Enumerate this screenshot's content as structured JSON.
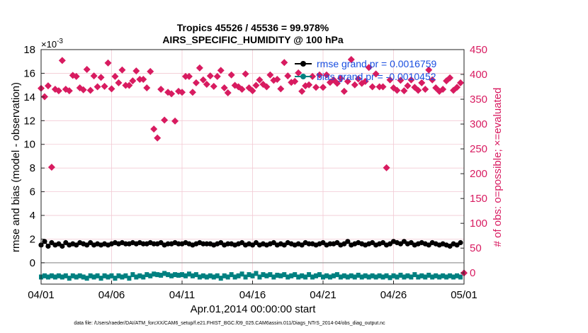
{
  "chart_data": {
    "type": "scatter",
    "title_line1": "Tropics 45526 / 45536 = 99.978%",
    "title_line2": "AIRS_SPECIFIC_HUMIDITY @ 100 hPa",
    "xlabel": "Apr.01,2014 00:00:00 start",
    "ylabel_left": "rmse and bias (model - observation)",
    "ylabel_right": "# of obs: o=possible; ×=evaluated",
    "y_exponent_label": "×10",
    "y_exponent_value": "-3",
    "footer": "data file: /Users/raeder/DAI/ATM_forcXX/CAM6_setup/f.e21.FHIST_BGC.f09_025.CAM6assim.011/Diags_NTrS_2014-04/obs_diag_output.nc",
    "x_ticks": [
      {
        "day": 0,
        "label": "04/01"
      },
      {
        "day": 5,
        "label": "04/06"
      },
      {
        "day": 10,
        "label": "04/11"
      },
      {
        "day": 15,
        "label": "04/16"
      },
      {
        "day": 20,
        "label": "04/21"
      },
      {
        "day": 25,
        "label": "04/26"
      },
      {
        "day": 30,
        "label": "05/01"
      }
    ],
    "xlim": [
      0,
      30
    ],
    "ylim_left": [
      -1.8,
      18
    ],
    "ylim_right": [
      -22.5,
      450
    ],
    "y_ticks_left": [
      "0",
      "2",
      "4",
      "6",
      "8",
      "10",
      "12",
      "14",
      "16",
      "18"
    ],
    "y_ticks_right": [
      "0",
      "50",
      "100",
      "150",
      "200",
      "250",
      "300",
      "350",
      "400",
      "450"
    ],
    "grid": true,
    "legend": {
      "position": "top-right",
      "entries": [
        {
          "label": "rmse grand pr = 0.0016759",
          "color": "#000000"
        },
        {
          "label": "bias grand pr = -0.0010452",
          "color": "#008080"
        }
      ]
    },
    "colors": {
      "rmse": "#000000",
      "bias": "#008080",
      "obs": "#d81b60",
      "legend_text": "#1a4fe0",
      "grid": "#f2c9d3",
      "zero_line": "#999999"
    },
    "series": [
      {
        "name": "rmse",
        "axis": "left",
        "units": "x1e-3",
        "x": [
          0.0,
          0.25,
          0.5,
          0.75,
          1.0,
          1.25,
          1.5,
          1.75,
          2.0,
          2.25,
          2.5,
          2.75,
          3.0,
          3.25,
          3.5,
          3.75,
          4.0,
          4.25,
          4.5,
          4.75,
          5.0,
          5.25,
          5.5,
          5.75,
          6.0,
          6.25,
          6.5,
          6.75,
          7.0,
          7.25,
          7.5,
          7.75,
          8.0,
          8.25,
          8.5,
          8.75,
          9.0,
          9.25,
          9.5,
          9.75,
          10.0,
          10.25,
          10.5,
          10.75,
          11.0,
          11.25,
          11.5,
          11.75,
          12.0,
          12.25,
          12.5,
          12.75,
          13.0,
          13.25,
          13.5,
          13.75,
          14.0,
          14.25,
          14.5,
          14.75,
          15.0,
          15.25,
          15.5,
          15.75,
          16.0,
          16.25,
          16.5,
          16.75,
          17.0,
          17.25,
          17.5,
          17.75,
          18.0,
          18.25,
          18.5,
          18.75,
          19.0,
          19.25,
          19.5,
          19.75,
          20.0,
          20.25,
          20.5,
          20.75,
          21.0,
          21.25,
          21.5,
          21.75,
          22.0,
          22.25,
          22.5,
          22.75,
          23.0,
          23.25,
          23.5,
          23.75,
          24.0,
          24.25,
          24.5,
          24.75,
          25.0,
          25.25,
          25.5,
          25.75,
          26.0,
          26.25,
          26.5,
          26.75,
          27.0,
          27.25,
          27.5,
          27.75,
          28.0,
          28.25,
          28.5,
          28.75,
          29.0,
          29.25,
          29.5,
          29.75
        ],
        "values": [
          1.5,
          1.8,
          1.4,
          1.7,
          1.5,
          1.6,
          1.4,
          1.7,
          1.5,
          1.6,
          1.5,
          1.7,
          1.6,
          1.5,
          1.7,
          1.5,
          1.6,
          1.5,
          1.6,
          1.5,
          1.6,
          1.7,
          1.6,
          1.7,
          1.6,
          1.6,
          1.7,
          1.6,
          1.7,
          1.6,
          1.6,
          1.7,
          1.6,
          1.6,
          1.7,
          1.5,
          1.6,
          1.6,
          1.7,
          1.6,
          1.6,
          1.7,
          1.6,
          1.5,
          1.6,
          1.7,
          1.6,
          1.6,
          1.6,
          1.5,
          1.6,
          1.7,
          1.5,
          1.6,
          1.6,
          1.5,
          1.6,
          1.7,
          1.5,
          1.6,
          1.5,
          1.7,
          1.5,
          1.6,
          1.5,
          1.6,
          1.7,
          1.5,
          1.6,
          1.5,
          1.7,
          1.6,
          1.5,
          1.6,
          1.5,
          1.7,
          1.6,
          1.6,
          1.5,
          1.6,
          1.7,
          1.5,
          1.6,
          1.6,
          1.7,
          1.5,
          1.6,
          1.8,
          1.5,
          1.6,
          1.7,
          1.6,
          1.5,
          1.6,
          1.7,
          1.5,
          1.6,
          1.7,
          1.5,
          1.6,
          1.8,
          1.7,
          1.6,
          1.8,
          1.6,
          1.7,
          1.5,
          1.6,
          1.7,
          1.6,
          1.5,
          1.7,
          1.6,
          1.5,
          1.6,
          1.5,
          1.4,
          1.6,
          1.5,
          1.7
        ]
      },
      {
        "name": "bias",
        "axis": "left",
        "units": "x1e-3",
        "x": [
          0.0,
          0.25,
          0.5,
          0.75,
          1.0,
          1.25,
          1.5,
          1.75,
          2.0,
          2.25,
          2.5,
          2.75,
          3.0,
          3.25,
          3.5,
          3.75,
          4.0,
          4.25,
          4.5,
          4.75,
          5.0,
          5.25,
          5.5,
          5.75,
          6.0,
          6.25,
          6.5,
          6.75,
          7.0,
          7.25,
          7.5,
          7.75,
          8.0,
          8.25,
          8.5,
          8.75,
          9.0,
          9.25,
          9.5,
          9.75,
          10.0,
          10.25,
          10.5,
          10.75,
          11.0,
          11.25,
          11.5,
          11.75,
          12.0,
          12.25,
          12.5,
          12.75,
          13.0,
          13.25,
          13.5,
          13.75,
          14.0,
          14.25,
          14.5,
          14.75,
          15.0,
          15.25,
          15.5,
          15.75,
          16.0,
          16.25,
          16.5,
          16.75,
          17.0,
          17.25,
          17.5,
          17.75,
          18.0,
          18.25,
          18.5,
          18.75,
          19.0,
          19.25,
          19.5,
          19.75,
          20.0,
          20.25,
          20.5,
          20.75,
          21.0,
          21.25,
          21.5,
          21.75,
          22.0,
          22.25,
          22.5,
          22.75,
          23.0,
          23.25,
          23.5,
          23.75,
          24.0,
          24.25,
          24.5,
          24.75,
          25.0,
          25.25,
          25.5,
          25.75,
          26.0,
          26.25,
          26.5,
          26.75,
          27.0,
          27.25,
          27.5,
          27.75,
          28.0,
          28.25,
          28.5,
          28.75,
          29.0,
          29.25,
          29.5,
          29.75
        ],
        "values": [
          -1.2,
          -1.1,
          -1.2,
          -1.1,
          -1.2,
          -1.1,
          -1.2,
          -1.1,
          -1.3,
          -1.1,
          -1.2,
          -1.1,
          -1.2,
          -1.3,
          -1.1,
          -1.2,
          -1.1,
          -1.3,
          -1.1,
          -1.2,
          -1.1,
          -1.3,
          -1.1,
          -1.2,
          -1.1,
          -1.3,
          -1.0,
          -1.2,
          -1.1,
          -1.2,
          -1.0,
          -1.1,
          -0.95,
          -1.0,
          -1.05,
          -0.9,
          -1.0,
          -1.1,
          -1.0,
          -1.05,
          -1.0,
          -1.1,
          -0.95,
          -1.1,
          -1.0,
          -1.2,
          -1.1,
          -1.2,
          -1.1,
          -1.2,
          -1.1,
          -1.3,
          -1.1,
          -1.2,
          -1.0,
          -1.2,
          -1.1,
          -0.95,
          -1.2,
          -1.0,
          -1.1,
          -0.9,
          -1.2,
          -1.0,
          -1.1,
          -1.0,
          -1.2,
          -1.05,
          -1.1,
          -1.0,
          -1.2,
          -1.1,
          -1.0,
          -1.2,
          -1.1,
          -1.2,
          -1.0,
          -1.2,
          -1.1,
          -1.0,
          -1.2,
          -1.1,
          -1.2,
          -1.1,
          -1.0,
          -1.2,
          -1.1,
          -1.2,
          -1.1,
          -1.2,
          -1.05,
          -1.2,
          -1.1,
          -1.2,
          -1.1,
          -1.2,
          -1.1,
          -1.2,
          -1.1,
          -1.25,
          -1.1,
          -1.2,
          -1.05,
          -1.2,
          -1.1,
          -1.2,
          -1.0,
          -1.2,
          -1.1,
          -1.2,
          -1.05,
          -1.2,
          -1.1,
          -1.2,
          -1.1,
          -1.2,
          -1.1,
          -1.2,
          -1.1,
          -1.2
        ]
      },
      {
        "name": "obs possible",
        "axis": "right",
        "units": "count",
        "x": [
          0.0,
          0.25,
          0.5,
          0.75,
          1.0,
          1.25,
          1.5,
          1.75,
          2.0,
          2.25,
          2.5,
          2.75,
          3.0,
          3.25,
          3.5,
          3.75,
          4.0,
          4.25,
          4.5,
          4.75,
          5.0,
          5.25,
          5.5,
          5.75,
          6.0,
          6.25,
          6.5,
          6.75,
          7.0,
          7.25,
          7.5,
          7.75,
          8.0,
          8.25,
          8.5,
          8.75,
          9.0,
          9.25,
          9.5,
          9.75,
          10.0,
          10.25,
          10.5,
          10.75,
          11.0,
          11.25,
          11.5,
          11.75,
          12.0,
          12.25,
          12.5,
          12.75,
          13.0,
          13.25,
          13.5,
          13.75,
          14.0,
          14.25,
          14.5,
          14.75,
          15.0,
          15.25,
          15.5,
          15.75,
          16.0,
          16.25,
          16.5,
          16.75,
          17.0,
          17.25,
          17.5,
          17.75,
          18.0,
          18.25,
          18.5,
          18.75,
          19.0,
          19.25,
          19.5,
          19.75,
          20.0,
          20.25,
          20.5,
          20.75,
          21.0,
          21.25,
          21.5,
          21.75,
          22.0,
          22.25,
          22.5,
          22.75,
          23.0,
          23.25,
          23.5,
          23.75,
          24.0,
          24.25,
          24.5,
          24.75,
          25.0,
          25.25,
          25.5,
          25.75,
          26.0,
          26.25,
          26.5,
          26.75,
          27.0,
          27.25,
          27.5,
          27.75,
          28.0,
          28.25,
          28.5,
          28.75,
          29.0,
          29.25,
          29.5,
          29.75,
          30.0
        ],
        "values": [
          372,
          355,
          377,
          213,
          370,
          367,
          428,
          370,
          367,
          398,
          396,
          373,
          369,
          410,
          368,
          397,
          375,
          394,
          376,
          423,
          371,
          396,
          383,
          409,
          378,
          378,
          387,
          407,
          390,
          390,
          373,
          406,
          290,
          272,
          370,
          308,
          364,
          361,
          306,
          366,
          364,
          396,
          396,
          364,
          383,
          413,
          389,
          380,
          397,
          376,
          396,
          408,
          373,
          363,
          399,
          378,
          375,
          370,
          401,
          373,
          367,
          378,
          389,
          380,
          375,
          399,
          388,
          390,
          371,
          424,
          397,
          384,
          386,
          403,
          366,
          377,
          379,
          396,
          374,
          399,
          374,
          399,
          384,
          389,
          382,
          392,
          366,
          386,
          430,
          379,
          391,
          382,
          386,
          414,
          375,
          401,
          375,
          375,
          212,
          389,
          373,
          368,
          388,
          367,
          377,
          389,
          374,
          368,
          383,
          370,
          409,
          389,
          373,
          366,
          370,
          387,
          393,
          368,
          374,
          383,
          0
        ]
      }
    ]
  }
}
